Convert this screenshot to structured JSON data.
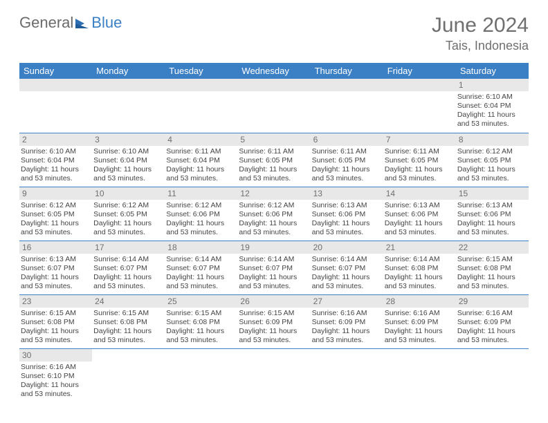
{
  "brand": {
    "part1": "General",
    "part2": "Blue"
  },
  "header": {
    "title": "June 2024",
    "location": "Tais, Indonesia"
  },
  "colors": {
    "header_bg": "#3b7fc4",
    "header_fg": "#ffffff",
    "daynum_bg": "#e8e8e8",
    "rule": "#3b7fc4"
  },
  "weekdays": [
    "Sunday",
    "Monday",
    "Tuesday",
    "Wednesday",
    "Thursday",
    "Friday",
    "Saturday"
  ],
  "grid": [
    [
      null,
      null,
      null,
      null,
      null,
      null,
      {
        "n": "1",
        "sunrise": "6:10 AM",
        "sunset": "6:04 PM",
        "daylight": "11 hours and 53 minutes."
      }
    ],
    [
      {
        "n": "2",
        "sunrise": "6:10 AM",
        "sunset": "6:04 PM",
        "daylight": "11 hours and 53 minutes."
      },
      {
        "n": "3",
        "sunrise": "6:10 AM",
        "sunset": "6:04 PM",
        "daylight": "11 hours and 53 minutes."
      },
      {
        "n": "4",
        "sunrise": "6:11 AM",
        "sunset": "6:04 PM",
        "daylight": "11 hours and 53 minutes."
      },
      {
        "n": "5",
        "sunrise": "6:11 AM",
        "sunset": "6:05 PM",
        "daylight": "11 hours and 53 minutes."
      },
      {
        "n": "6",
        "sunrise": "6:11 AM",
        "sunset": "6:05 PM",
        "daylight": "11 hours and 53 minutes."
      },
      {
        "n": "7",
        "sunrise": "6:11 AM",
        "sunset": "6:05 PM",
        "daylight": "11 hours and 53 minutes."
      },
      {
        "n": "8",
        "sunrise": "6:12 AM",
        "sunset": "6:05 PM",
        "daylight": "11 hours and 53 minutes."
      }
    ],
    [
      {
        "n": "9",
        "sunrise": "6:12 AM",
        "sunset": "6:05 PM",
        "daylight": "11 hours and 53 minutes."
      },
      {
        "n": "10",
        "sunrise": "6:12 AM",
        "sunset": "6:05 PM",
        "daylight": "11 hours and 53 minutes."
      },
      {
        "n": "11",
        "sunrise": "6:12 AM",
        "sunset": "6:06 PM",
        "daylight": "11 hours and 53 minutes."
      },
      {
        "n": "12",
        "sunrise": "6:12 AM",
        "sunset": "6:06 PM",
        "daylight": "11 hours and 53 minutes."
      },
      {
        "n": "13",
        "sunrise": "6:13 AM",
        "sunset": "6:06 PM",
        "daylight": "11 hours and 53 minutes."
      },
      {
        "n": "14",
        "sunrise": "6:13 AM",
        "sunset": "6:06 PM",
        "daylight": "11 hours and 53 minutes."
      },
      {
        "n": "15",
        "sunrise": "6:13 AM",
        "sunset": "6:06 PM",
        "daylight": "11 hours and 53 minutes."
      }
    ],
    [
      {
        "n": "16",
        "sunrise": "6:13 AM",
        "sunset": "6:07 PM",
        "daylight": "11 hours and 53 minutes."
      },
      {
        "n": "17",
        "sunrise": "6:14 AM",
        "sunset": "6:07 PM",
        "daylight": "11 hours and 53 minutes."
      },
      {
        "n": "18",
        "sunrise": "6:14 AM",
        "sunset": "6:07 PM",
        "daylight": "11 hours and 53 minutes."
      },
      {
        "n": "19",
        "sunrise": "6:14 AM",
        "sunset": "6:07 PM",
        "daylight": "11 hours and 53 minutes."
      },
      {
        "n": "20",
        "sunrise": "6:14 AM",
        "sunset": "6:07 PM",
        "daylight": "11 hours and 53 minutes."
      },
      {
        "n": "21",
        "sunrise": "6:14 AM",
        "sunset": "6:08 PM",
        "daylight": "11 hours and 53 minutes."
      },
      {
        "n": "22",
        "sunrise": "6:15 AM",
        "sunset": "6:08 PM",
        "daylight": "11 hours and 53 minutes."
      }
    ],
    [
      {
        "n": "23",
        "sunrise": "6:15 AM",
        "sunset": "6:08 PM",
        "daylight": "11 hours and 53 minutes."
      },
      {
        "n": "24",
        "sunrise": "6:15 AM",
        "sunset": "6:08 PM",
        "daylight": "11 hours and 53 minutes."
      },
      {
        "n": "25",
        "sunrise": "6:15 AM",
        "sunset": "6:08 PM",
        "daylight": "11 hours and 53 minutes."
      },
      {
        "n": "26",
        "sunrise": "6:15 AM",
        "sunset": "6:09 PM",
        "daylight": "11 hours and 53 minutes."
      },
      {
        "n": "27",
        "sunrise": "6:16 AM",
        "sunset": "6:09 PM",
        "daylight": "11 hours and 53 minutes."
      },
      {
        "n": "28",
        "sunrise": "6:16 AM",
        "sunset": "6:09 PM",
        "daylight": "11 hours and 53 minutes."
      },
      {
        "n": "29",
        "sunrise": "6:16 AM",
        "sunset": "6:09 PM",
        "daylight": "11 hours and 53 minutes."
      }
    ],
    [
      {
        "n": "30",
        "sunrise": "6:16 AM",
        "sunset": "6:10 PM",
        "daylight": "11 hours and 53 minutes."
      },
      null,
      null,
      null,
      null,
      null,
      null
    ]
  ],
  "labels": {
    "sunrise": "Sunrise: ",
    "sunset": "Sunset: ",
    "daylight": "Daylight: "
  }
}
